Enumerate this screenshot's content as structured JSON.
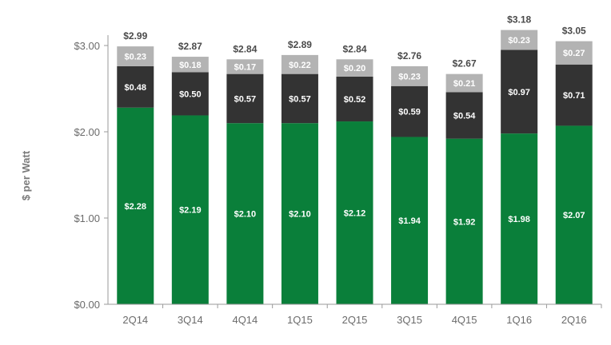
{
  "chart_data": {
    "type": "bar",
    "stacked": true,
    "ylabel": "$ per Watt",
    "xlabel": "",
    "ylim": [
      0,
      3.0
    ],
    "y_ticks": [
      "$0.00",
      "$1.00",
      "$2.00",
      "$3.00"
    ],
    "y_tick_values": [
      0,
      1,
      2,
      3
    ],
    "categories": [
      "2Q14",
      "3Q14",
      "4Q14",
      "1Q15",
      "2Q15",
      "3Q15",
      "4Q15",
      "1Q16",
      "2Q16"
    ],
    "series": [
      {
        "color": "#0a7f3a",
        "values": [
          2.28,
          2.19,
          2.1,
          2.1,
          2.12,
          1.94,
          1.92,
          1.98,
          2.07
        ],
        "labels": [
          "$2.28",
          "$2.19",
          "$2.10",
          "$2.10",
          "$2.12",
          "$1.94",
          "$1.92",
          "$1.98",
          "$2.07"
        ]
      },
      {
        "color": "#333333",
        "values": [
          0.48,
          0.5,
          0.57,
          0.57,
          0.52,
          0.59,
          0.54,
          0.97,
          0.71
        ],
        "labels": [
          "$0.48",
          "$0.50",
          "$0.57",
          "$0.57",
          "$0.52",
          "$0.59",
          "$0.54",
          "$0.97",
          "$0.71"
        ]
      },
      {
        "color": "#b3b3b3",
        "values": [
          0.23,
          0.18,
          0.17,
          0.22,
          0.2,
          0.23,
          0.21,
          0.23,
          0.27
        ],
        "labels": [
          "$0.23",
          "$0.18",
          "$0.17",
          "$0.22",
          "$0.20",
          "$0.23",
          "$0.21",
          "$0.23",
          "$0.27"
        ]
      }
    ],
    "totals": [
      2.99,
      2.87,
      2.84,
      2.89,
      2.84,
      2.76,
      2.67,
      3.18,
      3.05
    ],
    "total_labels": [
      "$2.99",
      "$2.87",
      "$2.84",
      "$2.89",
      "$2.84",
      "$2.76",
      "$2.67",
      "$3.18",
      "$3.05"
    ],
    "grid": false,
    "legend": "none"
  }
}
